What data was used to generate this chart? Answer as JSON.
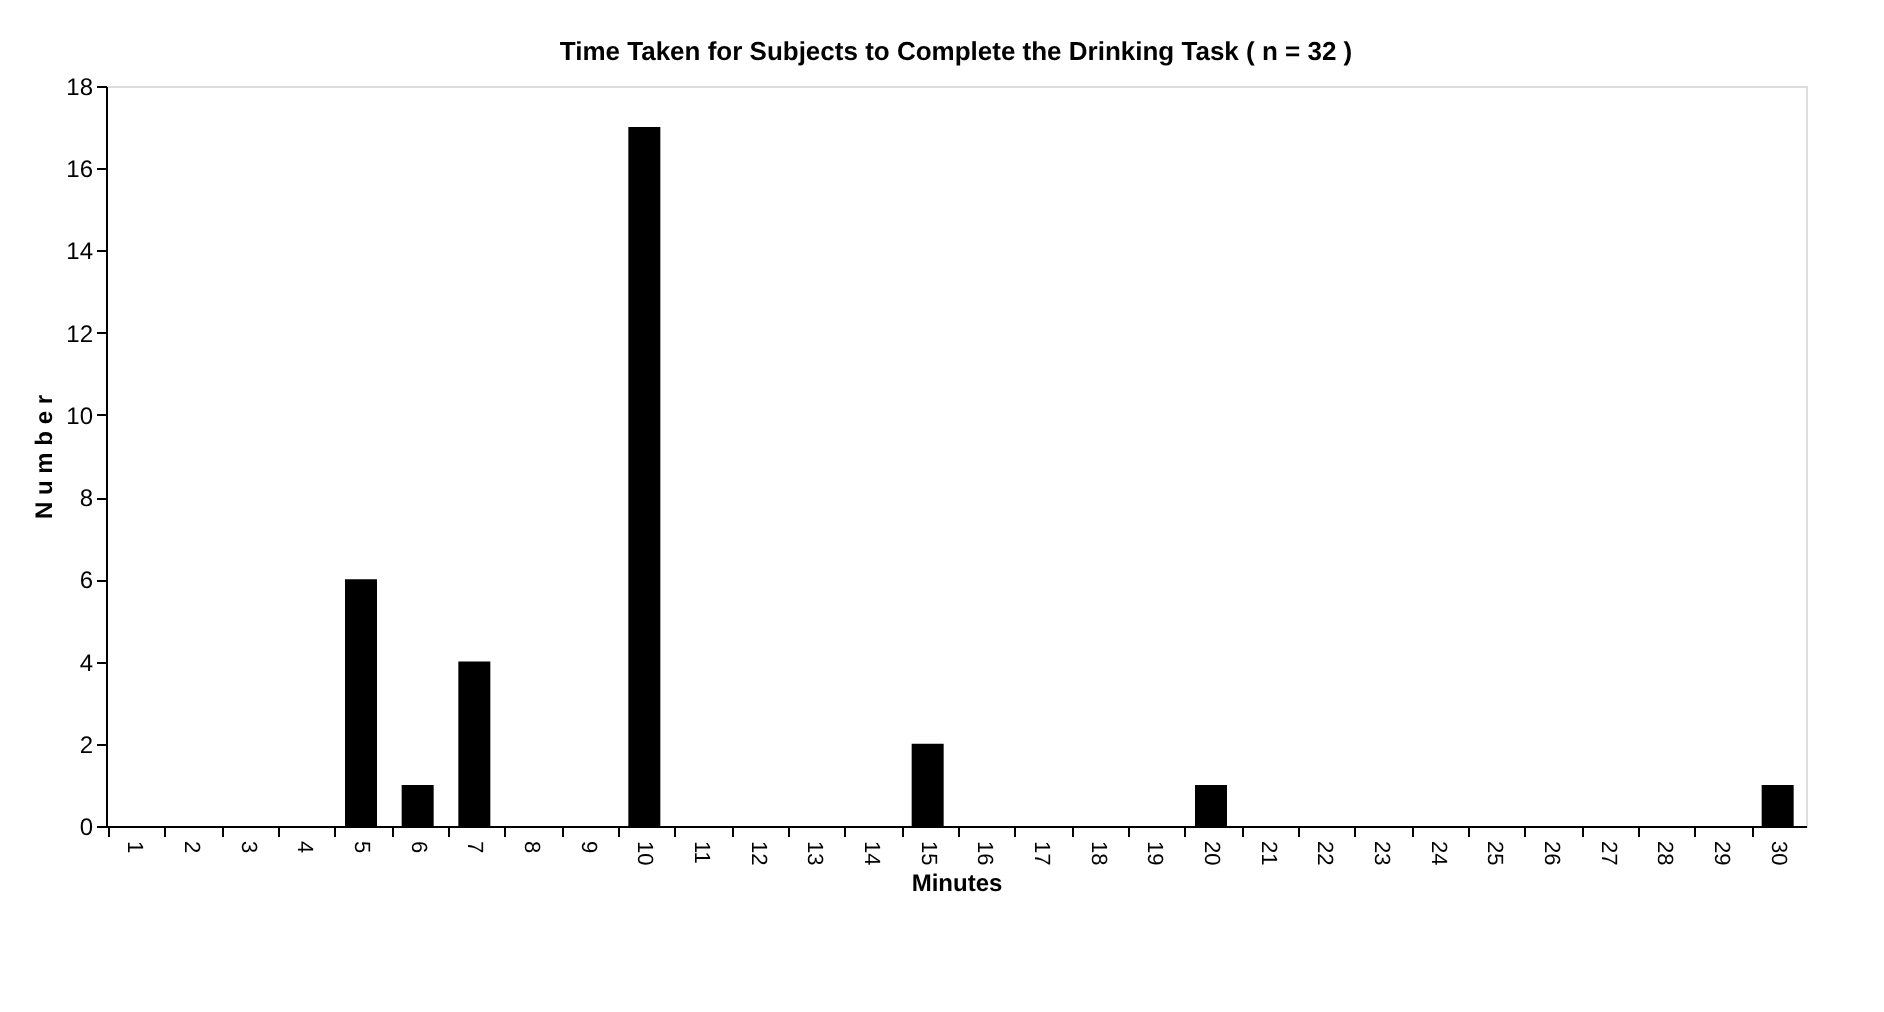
{
  "chart_data": {
    "type": "bar",
    "title": "Time Taken for Subjects to Complete the Drinking Task                ( n = 32 )",
    "xlabel": "Minutes",
    "ylabel": "N u m b e r",
    "categories": [
      "1",
      "2",
      "3",
      "4",
      "5",
      "6",
      "7",
      "8",
      "9",
      "10",
      "11",
      "12",
      "13",
      "14",
      "15",
      "16",
      "17",
      "18",
      "19",
      "20",
      "21",
      "22",
      "23",
      "24",
      "25",
      "26",
      "27",
      "28",
      "29",
      "30"
    ],
    "values": [
      0,
      0,
      0,
      0,
      6,
      1,
      4,
      0,
      0,
      17,
      0,
      0,
      0,
      0,
      2,
      0,
      0,
      0,
      0,
      1,
      0,
      0,
      0,
      0,
      0,
      0,
      0,
      0,
      0,
      1
    ],
    "color": "#000000",
    "ylim": [
      0,
      18
    ],
    "yticks": [
      0,
      2,
      4,
      6,
      8,
      10,
      12,
      14,
      16,
      18
    ],
    "grid": false
  }
}
